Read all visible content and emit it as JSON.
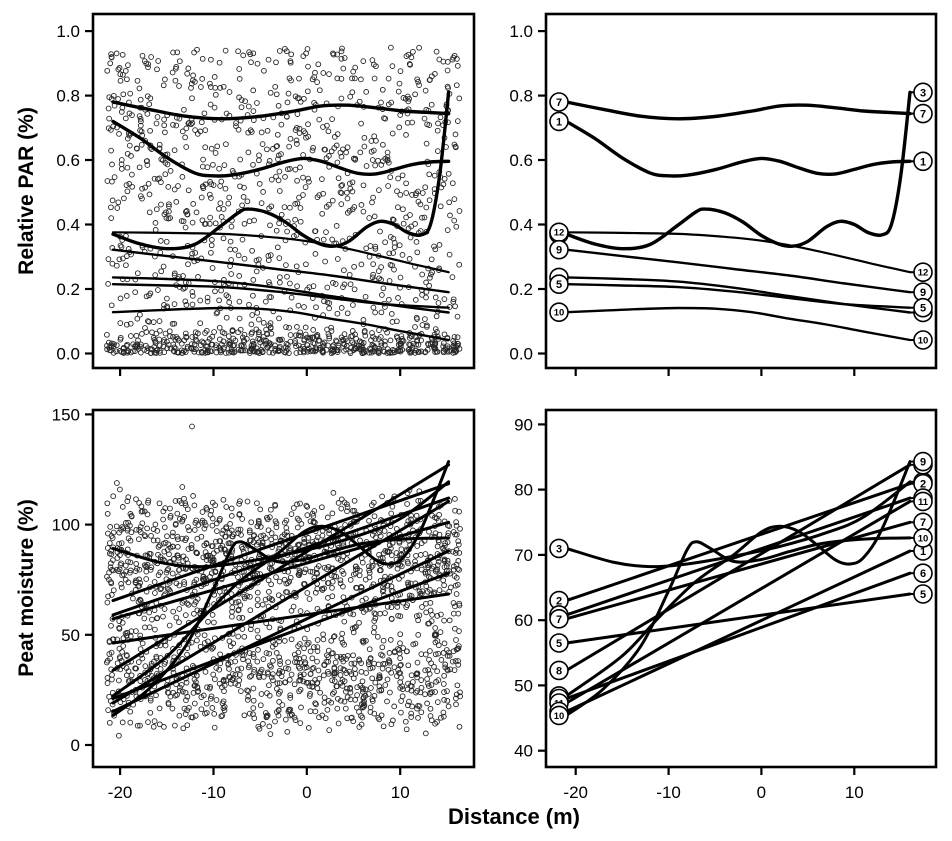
{
  "colors": {
    "ink": "#000000",
    "background": "#ffffff"
  },
  "axis_titles": {
    "top_y": "Relative PAR (%)",
    "bottom_y": "Peat moisture (%)",
    "x": "Distance (m)"
  },
  "chart_data": [
    {
      "id": "top-left",
      "type": "scatter",
      "xlim": [
        -22.9,
        17.9
      ],
      "ylim": [
        -0.045,
        1.053
      ],
      "x_ticks": {
        "values": [
          -20,
          -10,
          0,
          10
        ],
        "labels": [
          "-20",
          "-10",
          "0",
          "10"
        ],
        "show_labels": false
      },
      "y_ticks": {
        "values": [
          0,
          0.2,
          0.4,
          0.6,
          0.8,
          1.0
        ],
        "labels": [
          "0.0",
          "0.2",
          "0.4",
          "0.6",
          "0.8",
          "1.0"
        ]
      },
      "scatter": {
        "seed": 7,
        "col_start": -21,
        "col_end": 16,
        "per_column": 40,
        "x_jitter": 0.42,
        "marker": "open-circle",
        "marker_radius": 2.4,
        "y_mixture": [
          {
            "weight": 0.32,
            "kind": "floor",
            "scale": 0.085
          },
          {
            "weight": 0.68,
            "kind": "uniform",
            "lo": 0.02,
            "hi": 0.95
          }
        ],
        "clip": [
          0.001,
          0.995
        ]
      },
      "overlay_series_from": "top-right"
    },
    {
      "id": "top-right",
      "type": "line",
      "end_labels": true,
      "xlim": [
        -23.2,
        18.8
      ],
      "ylim": [
        -0.045,
        1.053
      ],
      "x_ticks": {
        "values": [
          -20,
          -10,
          0,
          10
        ],
        "labels": [
          "-20",
          "-10",
          "0",
          "10"
        ],
        "show_labels": false
      },
      "y_ticks": {
        "values": [
          0,
          0.2,
          0.4,
          0.6,
          0.8,
          1.0
        ],
        "labels": [
          "0.0",
          "0.2",
          "0.4",
          "0.6",
          "0.8",
          "1.0"
        ]
      },
      "series": [
        {
          "id": "7",
          "lw": 3.4,
          "points": [
            [
              -21,
              0.78
            ],
            [
              -17,
              0.757
            ],
            [
              -13,
              0.736
            ],
            [
              -9,
              0.728
            ],
            [
              -5,
              0.735
            ],
            [
              -1,
              0.752
            ],
            [
              2,
              0.768
            ],
            [
              5,
              0.77
            ],
            [
              8,
              0.762
            ],
            [
              11,
              0.752
            ],
            [
              13.5,
              0.748
            ],
            [
              16,
              0.744
            ]
          ]
        },
        {
          "id": "1",
          "lw": 3.4,
          "points": [
            [
              -21,
              0.72
            ],
            [
              -18,
              0.668
            ],
            [
              -15,
              0.607
            ],
            [
              -12,
              0.56
            ],
            [
              -10,
              0.551
            ],
            [
              -8,
              0.553
            ],
            [
              -5,
              0.57
            ],
            [
              -2,
              0.595
            ],
            [
              0,
              0.605
            ],
            [
              2,
              0.596
            ],
            [
              4,
              0.576
            ],
            [
              6,
              0.559
            ],
            [
              8,
              0.557
            ],
            [
              10,
              0.571
            ],
            [
              12,
              0.586
            ],
            [
              14,
              0.594
            ],
            [
              16,
              0.596
            ]
          ]
        },
        {
          "id": "3",
          "lw": 3.4,
          "points": [
            [
              -21,
              0.37
            ],
            [
              -18,
              0.34
            ],
            [
              -15,
              0.325
            ],
            [
              -12,
              0.338
            ],
            [
              -9,
              0.398
            ],
            [
              -7,
              0.44
            ],
            [
              -6,
              0.448
            ],
            [
              -4,
              0.437
            ],
            [
              -2,
              0.408
            ],
            [
              0,
              0.366
            ],
            [
              2,
              0.338
            ],
            [
              3.5,
              0.333
            ],
            [
              5,
              0.348
            ],
            [
              7,
              0.393
            ],
            [
              8.5,
              0.41
            ],
            [
              10,
              0.4
            ],
            [
              11.5,
              0.375
            ],
            [
              13,
              0.368
            ],
            [
              14,
              0.4
            ],
            [
              15,
              0.55
            ],
            [
              16,
              0.81
            ]
          ]
        },
        {
          "id": "12",
          "lw": 2.2,
          "points": [
            [
              -21,
              0.376
            ],
            [
              -15,
              0.374
            ],
            [
              -9,
              0.371
            ],
            [
              -4,
              0.362
            ],
            [
              0,
              0.35
            ],
            [
              4,
              0.33
            ],
            [
              8,
              0.305
            ],
            [
              12,
              0.278
            ],
            [
              16,
              0.252
            ]
          ]
        },
        {
          "id": "9",
          "lw": 2.4,
          "points": [
            [
              -21,
              0.322
            ],
            [
              -15,
              0.302
            ],
            [
              -9,
              0.283
            ],
            [
              -3,
              0.262
            ],
            [
              3,
              0.242
            ],
            [
              9,
              0.217
            ],
            [
              16,
              0.19
            ]
          ]
        },
        {
          "id": "11",
          "lw": 2.4,
          "points": [
            [
              -21,
              0.236
            ],
            [
              -15,
              0.231
            ],
            [
              -9,
              0.223
            ],
            [
              -3,
              0.204
            ],
            [
              3,
              0.178
            ],
            [
              9,
              0.153
            ],
            [
              16,
              0.127
            ]
          ]
        },
        {
          "id": "5",
          "lw": 2.4,
          "points": [
            [
              -21,
              0.215
            ],
            [
              -15,
              0.211
            ],
            [
              -9,
              0.206
            ],
            [
              -3,
              0.192
            ],
            [
              3,
              0.172
            ],
            [
              9,
              0.153
            ],
            [
              16,
              0.142
            ]
          ]
        },
        {
          "id": "10",
          "lw": 2.4,
          "points": [
            [
              -21,
              0.128
            ],
            [
              -17,
              0.133
            ],
            [
              -13,
              0.138
            ],
            [
              -9,
              0.141
            ],
            [
              -5,
              0.139
            ],
            [
              -1,
              0.128
            ],
            [
              3,
              0.108
            ],
            [
              7,
              0.09
            ],
            [
              11,
              0.068
            ],
            [
              16,
              0.042
            ]
          ]
        }
      ]
    },
    {
      "id": "bottom-left",
      "type": "scatter",
      "xlim": [
        -22.9,
        17.9
      ],
      "ylim": [
        -10,
        152
      ],
      "x_ticks": {
        "values": [
          -20,
          -10,
          0,
          10
        ],
        "labels": [
          "-20",
          "-10",
          "0",
          "10"
        ],
        "show_labels": true
      },
      "y_ticks": {
        "values": [
          0,
          50,
          100,
          150
        ],
        "labels": [
          "0",
          "50",
          "100",
          "150"
        ]
      },
      "scatter": {
        "seed": 11,
        "col_start": -21,
        "col_end": 16,
        "per_column": 52,
        "x_jitter": 0.42,
        "marker": "open-circle",
        "marker_radius": 2.4,
        "y_mixture": [
          {
            "weight": 0.42,
            "kind": "gauss",
            "mean": 84,
            "sd": 13
          },
          {
            "weight": 0.25,
            "kind": "gauss",
            "mean": 30,
            "sd": 12
          },
          {
            "weight": 0.33,
            "kind": "uniform",
            "lo": 8,
            "hi": 112
          }
        ],
        "clip": [
          4,
          126
        ],
        "outliers": [
          [
            -12.3,
            144.5
          ]
        ]
      },
      "overlay_series_from": "bottom-right"
    },
    {
      "id": "bottom-right",
      "type": "line",
      "end_labels": true,
      "xlim": [
        -23.2,
        18.8
      ],
      "ylim": [
        37.5,
        92.2
      ],
      "x_ticks": {
        "values": [
          -20,
          -10,
          0,
          10
        ],
        "labels": [
          "-20",
          "-10",
          "0",
          "10"
        ],
        "show_labels": true
      },
      "y_ticks": {
        "values": [
          40,
          50,
          60,
          70,
          80,
          90
        ],
        "labels": [
          "40",
          "50",
          "60",
          "70",
          "80",
          "90"
        ]
      },
      "series": [
        {
          "id": "3",
          "lw": 3,
          "points": [
            [
              -21,
              71.0
            ],
            [
              -16,
              68.9
            ],
            [
              -12,
              68.2
            ],
            [
              -8,
              68.6
            ],
            [
              -3,
              69.8
            ],
            [
              2,
              71.3
            ],
            [
              7,
              73.4
            ],
            [
              11,
              75.8
            ],
            [
              16,
              81.2
            ]
          ]
        },
        {
          "id": "2",
          "lw": 3,
          "points": [
            [
              -21,
              63.0
            ],
            [
              16,
              80.9
            ]
          ]
        },
        {
          "id": "4",
          "lw": 3,
          "points": [
            [
              -21,
              60.8
            ],
            [
              16,
              78.7
            ]
          ]
        },
        {
          "id": "7",
          "lw": 3,
          "points": [
            [
              -21,
              60.2
            ],
            [
              16,
              75.0
            ]
          ]
        },
        {
          "id": "5",
          "lw": 3,
          "points": [
            [
              -21,
              56.5
            ],
            [
              16,
              64.0
            ]
          ]
        },
        {
          "id": "8",
          "lw": 3,
          "points": [
            [
              -21,
              52.3
            ],
            [
              16,
              83.8
            ]
          ]
        },
        {
          "id": "9",
          "lw": 3,
          "points": [
            [
              -21,
              48.4
            ],
            [
              -15,
              54.5
            ],
            [
              -11,
              60.5
            ],
            [
              -7,
              66.0
            ],
            [
              -3,
              70.0
            ],
            [
              0,
              73.5
            ],
            [
              2,
              74.4
            ],
            [
              4,
              73.6
            ],
            [
              6,
              71.5
            ],
            [
              8,
              69.2
            ],
            [
              9.5,
              68.6
            ],
            [
              11,
              69.6
            ],
            [
              13,
              74.0
            ],
            [
              16,
              84.3
            ]
          ]
        },
        {
          "id": "6",
          "lw": 3,
          "points": [
            [
              -21,
              48.0
            ],
            [
              16,
              67.2
            ]
          ]
        },
        {
          "id": "11",
          "lw": 3,
          "points": [
            [
              -21,
              47.3
            ],
            [
              16,
              78.2
            ]
          ]
        },
        {
          "id": "1",
          "lw": 3,
          "points": [
            [
              -21,
              46.0
            ],
            [
              16,
              70.6
            ]
          ]
        },
        {
          "id": "10",
          "lw": 3,
          "points": [
            [
              -21,
              45.4
            ],
            [
              -17,
              49.5
            ],
            [
              -13,
              56.0
            ],
            [
              -10,
              64.5
            ],
            [
              -8,
              70.8
            ],
            [
              -7,
              72.0
            ],
            [
              -5.5,
              71.0
            ],
            [
              -3,
              69.0
            ],
            [
              0,
              69.3
            ],
            [
              3,
              70.5
            ],
            [
              6,
              71.6
            ],
            [
              9,
              72.2
            ],
            [
              12,
              72.5
            ],
            [
              16,
              72.6
            ]
          ]
        }
      ]
    }
  ]
}
